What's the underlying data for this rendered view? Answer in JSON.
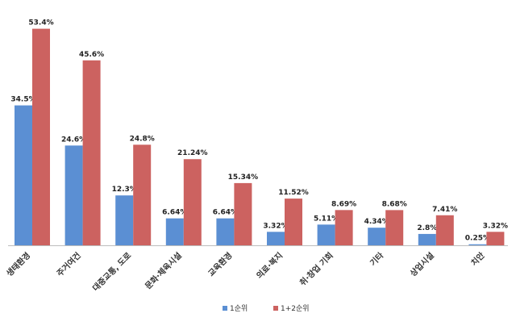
{
  "chart_data": {
    "type": "bar",
    "categories": [
      "생태환경",
      "주거여건",
      "대중교통, 도로",
      "문화·체육시설",
      "교육환경",
      "의료·복지",
      "취·창업 기회",
      "기타",
      "상업시설",
      "치안"
    ],
    "series": [
      {
        "name": "1순위",
        "color": "#5b8fd3",
        "values": [
          34.5,
          24.6,
          12.3,
          6.64,
          6.64,
          3.32,
          5.11,
          4.34,
          2.8,
          0.25
        ],
        "labels": [
          "34.5%",
          "24.6%",
          "12.3%",
          "6.64%",
          "6.64%",
          "3.32%",
          "5.11%",
          "4.34%",
          "2.8%",
          "0.25%"
        ]
      },
      {
        "name": "1+2순위",
        "color": "#cc6260",
        "values": [
          53.4,
          45.6,
          24.8,
          21.24,
          15.34,
          11.52,
          8.69,
          8.68,
          7.41,
          3.32
        ],
        "labels": [
          "53.4%",
          "45.6%",
          "24.8%",
          "21.24%",
          "15.34%",
          "11.52%",
          "8.69%",
          "8.68%",
          "7.41%",
          "3.32%"
        ]
      }
    ],
    "ylim": [
      0,
      57.3
    ],
    "grid": false,
    "legend_position": "bottom"
  }
}
